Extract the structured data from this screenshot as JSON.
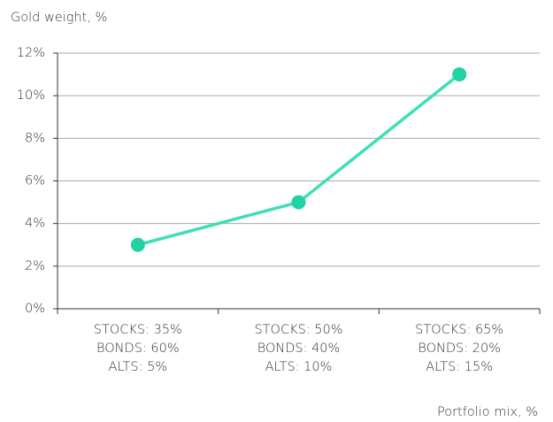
{
  "chart_data": {
    "type": "line",
    "y_axis_label": "Gold weight, %",
    "x_axis_label": "Portfolio mix, %",
    "categories": [
      [
        "STOCKS: 35%",
        "BONDS: 60%",
        "ALTS: 5%"
      ],
      [
        "STOCKS: 50%",
        "BONDS: 40%",
        "ALTS: 10%"
      ],
      [
        "STOCKS: 65%",
        "BONDS: 20%",
        "ALTS: 15%"
      ]
    ],
    "values": [
      3,
      5,
      11
    ],
    "color": "#3ddfb6",
    "marker_color": "#1fd3a3",
    "ylim": [
      0,
      12
    ],
    "yticks": [
      {
        "value": 0,
        "label": "0%"
      },
      {
        "value": 2,
        "label": "2%"
      },
      {
        "value": 4,
        "label": "4%"
      },
      {
        "value": 6,
        "label": "6%"
      },
      {
        "value": 8,
        "label": "8%"
      },
      {
        "value": 10,
        "label": "10%"
      },
      {
        "value": 12,
        "label": "12%"
      }
    ],
    "grid": true
  }
}
